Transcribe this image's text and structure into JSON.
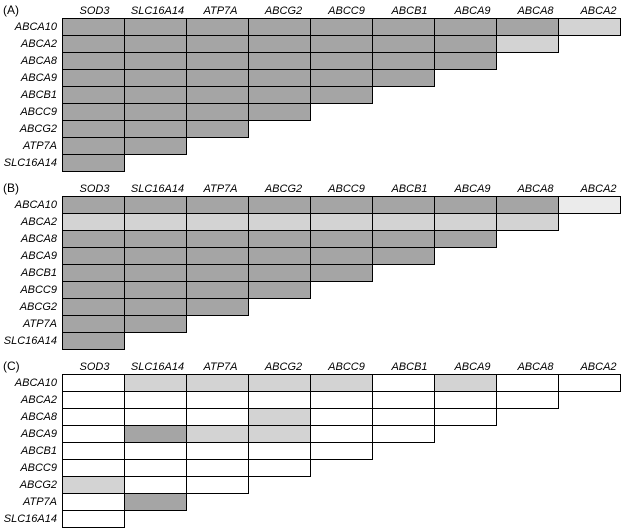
{
  "figure": {
    "background": "#ffffff",
    "border_color": "#000000",
    "shade_colors": {
      "dark": "#a5a5a5",
      "light": "#d3d3d3",
      "pale": "#ebebeb",
      "white": "#ffffff"
    }
  },
  "chart_data": [
    {
      "type": "heatmap",
      "panel_label": "(A)",
      "columns": [
        "SOD3",
        "SLC16A14",
        "ATP7A",
        "ABCG2",
        "ABCC9",
        "ABCB1",
        "ABCA9",
        "ABCA8",
        "ABCA2"
      ],
      "rows": [
        "ABCA10",
        "ABCA2",
        "ABCA8",
        "ABCA9",
        "ABCB1",
        "ABCC9",
        "ABCG2",
        "ATP7A",
        "SLC16A14"
      ],
      "value_legend": {
        "dark": "dark gray shading",
        "light": "light gray shading",
        "pale": "very light shading",
        "white": "no shading"
      },
      "cells": [
        [
          "dark",
          "dark",
          "dark",
          "dark",
          "dark",
          "dark",
          "dark",
          "dark",
          "light"
        ],
        [
          "dark",
          "dark",
          "dark",
          "dark",
          "dark",
          "dark",
          "dark",
          "light"
        ],
        [
          "dark",
          "dark",
          "dark",
          "dark",
          "dark",
          "dark",
          "dark"
        ],
        [
          "dark",
          "dark",
          "dark",
          "dark",
          "dark",
          "dark"
        ],
        [
          "dark",
          "dark",
          "dark",
          "dark",
          "dark"
        ],
        [
          "dark",
          "dark",
          "dark",
          "dark"
        ],
        [
          "dark",
          "dark",
          "dark"
        ],
        [
          "dark",
          "dark"
        ],
        [
          "dark"
        ]
      ]
    },
    {
      "type": "heatmap",
      "panel_label": "(B)",
      "columns": [
        "SOD3",
        "SLC16A14",
        "ATP7A",
        "ABCG2",
        "ABCC9",
        "ABCB1",
        "ABCA9",
        "ABCA8",
        "ABCA2"
      ],
      "rows": [
        "ABCA10",
        "ABCA2",
        "ABCA8",
        "ABCA9",
        "ABCB1",
        "ABCC9",
        "ABCG2",
        "ATP7A",
        "SLC16A14"
      ],
      "value_legend": {
        "dark": "dark gray shading",
        "light": "light gray shading",
        "pale": "very light shading",
        "white": "no shading"
      },
      "cells": [
        [
          "dark",
          "dark",
          "dark",
          "dark",
          "dark",
          "dark",
          "dark",
          "dark",
          "pale"
        ],
        [
          "light",
          "light",
          "light",
          "light",
          "light",
          "light",
          "light",
          "light"
        ],
        [
          "dark",
          "dark",
          "dark",
          "dark",
          "dark",
          "dark",
          "dark"
        ],
        [
          "dark",
          "dark",
          "dark",
          "dark",
          "dark",
          "dark"
        ],
        [
          "dark",
          "dark",
          "dark",
          "dark",
          "dark"
        ],
        [
          "dark",
          "dark",
          "dark",
          "dark"
        ],
        [
          "dark",
          "dark",
          "dark"
        ],
        [
          "dark",
          "dark"
        ],
        [
          "dark"
        ]
      ]
    },
    {
      "type": "heatmap",
      "panel_label": "(C)",
      "columns": [
        "SOD3",
        "SLC16A14",
        "ATP7A",
        "ABCG2",
        "ABCC9",
        "ABCB1",
        "ABCA9",
        "ABCA8",
        "ABCA2"
      ],
      "rows": [
        "ABCA10",
        "ABCA2",
        "ABCA8",
        "ABCA9",
        "ABCB1",
        "ABCC9",
        "ABCG2",
        "ATP7A",
        "SLC16A14"
      ],
      "value_legend": {
        "dark": "dark gray shading",
        "light": "light gray shading",
        "pale": "very light shading",
        "white": "no shading"
      },
      "cells": [
        [
          "white",
          "light",
          "light",
          "light",
          "light",
          "white",
          "light",
          "white",
          "white"
        ],
        [
          "white",
          "white",
          "white",
          "white",
          "white",
          "white",
          "white",
          "white"
        ],
        [
          "white",
          "white",
          "white",
          "light",
          "white",
          "white",
          "white"
        ],
        [
          "white",
          "dark",
          "light",
          "light",
          "white",
          "white"
        ],
        [
          "white",
          "white",
          "white",
          "white",
          "white"
        ],
        [
          "white",
          "white",
          "white",
          "white"
        ],
        [
          "light",
          "white",
          "white"
        ],
        [
          "white",
          "dark"
        ],
        [
          "white"
        ]
      ]
    }
  ]
}
